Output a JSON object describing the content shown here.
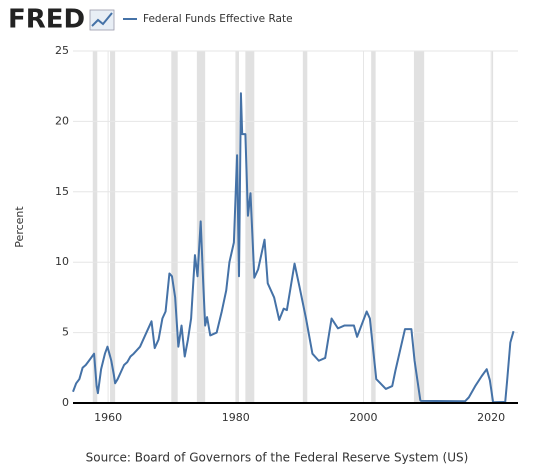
{
  "logo": "FRED",
  "chart_data": {
    "type": "line",
    "ylabel": "Percent",
    "source": "Source: Board of Governors of the Federal Reserve System (US)",
    "xlim": [
      1954.5,
      2024.2
    ],
    "ylim": [
      0,
      25
    ],
    "xticks": [
      1960,
      1980,
      2000,
      2020
    ],
    "yticks": [
      0,
      5,
      10,
      15,
      20,
      25
    ],
    "grid": true,
    "recessions": [
      [
        1957.6,
        1958.3
      ],
      [
        1960.3,
        1961.1
      ],
      [
        1969.9,
        1970.9
      ],
      [
        1973.9,
        1975.2
      ],
      [
        1980.0,
        1980.5
      ],
      [
        1981.5,
        1982.9
      ],
      [
        1990.5,
        1991.2
      ],
      [
        2001.2,
        2001.9
      ],
      [
        2007.9,
        2009.5
      ],
      [
        2020.1,
        2020.3
      ]
    ],
    "x": [
      1954.5,
      1955,
      1955.5,
      1956,
      1956.5,
      1957,
      1957.8,
      1958.2,
      1958.4,
      1958.9,
      1959.5,
      1959.9,
      1960.5,
      1960.9,
      1961.1,
      1961.5,
      1962,
      1962.5,
      1963,
      1963.5,
      1964,
      1965,
      1966,
      1966.8,
      1967.3,
      1967.9,
      1968.5,
      1969,
      1969.6,
      1970,
      1970.5,
      1971,
      1971.5,
      1972,
      1972.5,
      1973,
      1973.6,
      1974,
      1974.5,
      1974.9,
      1975.2,
      1975.5,
      1976,
      1977,
      1977.8,
      1978.5,
      1979,
      1979.7,
      1980.2,
      1980.5,
      1980.8,
      1981,
      1981.5,
      1981.9,
      1982.3,
      1982.9,
      1983.5,
      1984.5,
      1985,
      1986,
      1986.8,
      1987.5,
      1988,
      1989.2,
      1990,
      1991,
      1992,
      1993,
      1994,
      1995,
      1996,
      1997,
      1998.5,
      1999,
      2000.5,
      2001,
      2002,
      2003.5,
      2004.5,
      2005,
      2006.5,
      2007.5,
      2008,
      2008.9,
      2009,
      2015.9,
      2016.5,
      2017.5,
      2018.5,
      2019.3,
      2019.8,
      2020.3,
      2022.2,
      2022.5,
      2023,
      2023.5
    ],
    "series": [
      {
        "name": "Federal Funds Effective Rate",
        "color": "#4572a7",
        "values": [
          0.8,
          1.4,
          1.7,
          2.5,
          2.7,
          3.0,
          3.5,
          1.2,
          0.7,
          2.4,
          3.5,
          4.0,
          3.0,
          2.0,
          1.4,
          1.7,
          2.2,
          2.7,
          2.9,
          3.3,
          3.5,
          4.0,
          5.0,
          5.8,
          3.9,
          4.5,
          6.0,
          6.5,
          9.2,
          9.0,
          7.5,
          4.0,
          5.5,
          3.3,
          4.5,
          6.0,
          10.5,
          9.0,
          12.9,
          8.5,
          5.5,
          6.1,
          4.8,
          5.0,
          6.5,
          8.0,
          10.0,
          11.4,
          17.6,
          9.0,
          22.0,
          19.1,
          19.1,
          13.3,
          14.9,
          8.9,
          9.5,
          11.6,
          8.5,
          7.5,
          5.9,
          6.7,
          6.6,
          9.9,
          8.2,
          6.0,
          3.5,
          3.0,
          3.2,
          6.0,
          5.3,
          5.5,
          5.5,
          4.7,
          6.5,
          6.0,
          1.7,
          1.0,
          1.2,
          2.3,
          5.25,
          5.25,
          3.0,
          0.2,
          0.15,
          0.12,
          0.4,
          1.2,
          1.9,
          2.4,
          1.6,
          0.05,
          0.08,
          1.6,
          4.3,
          5.1
        ]
      }
    ]
  }
}
